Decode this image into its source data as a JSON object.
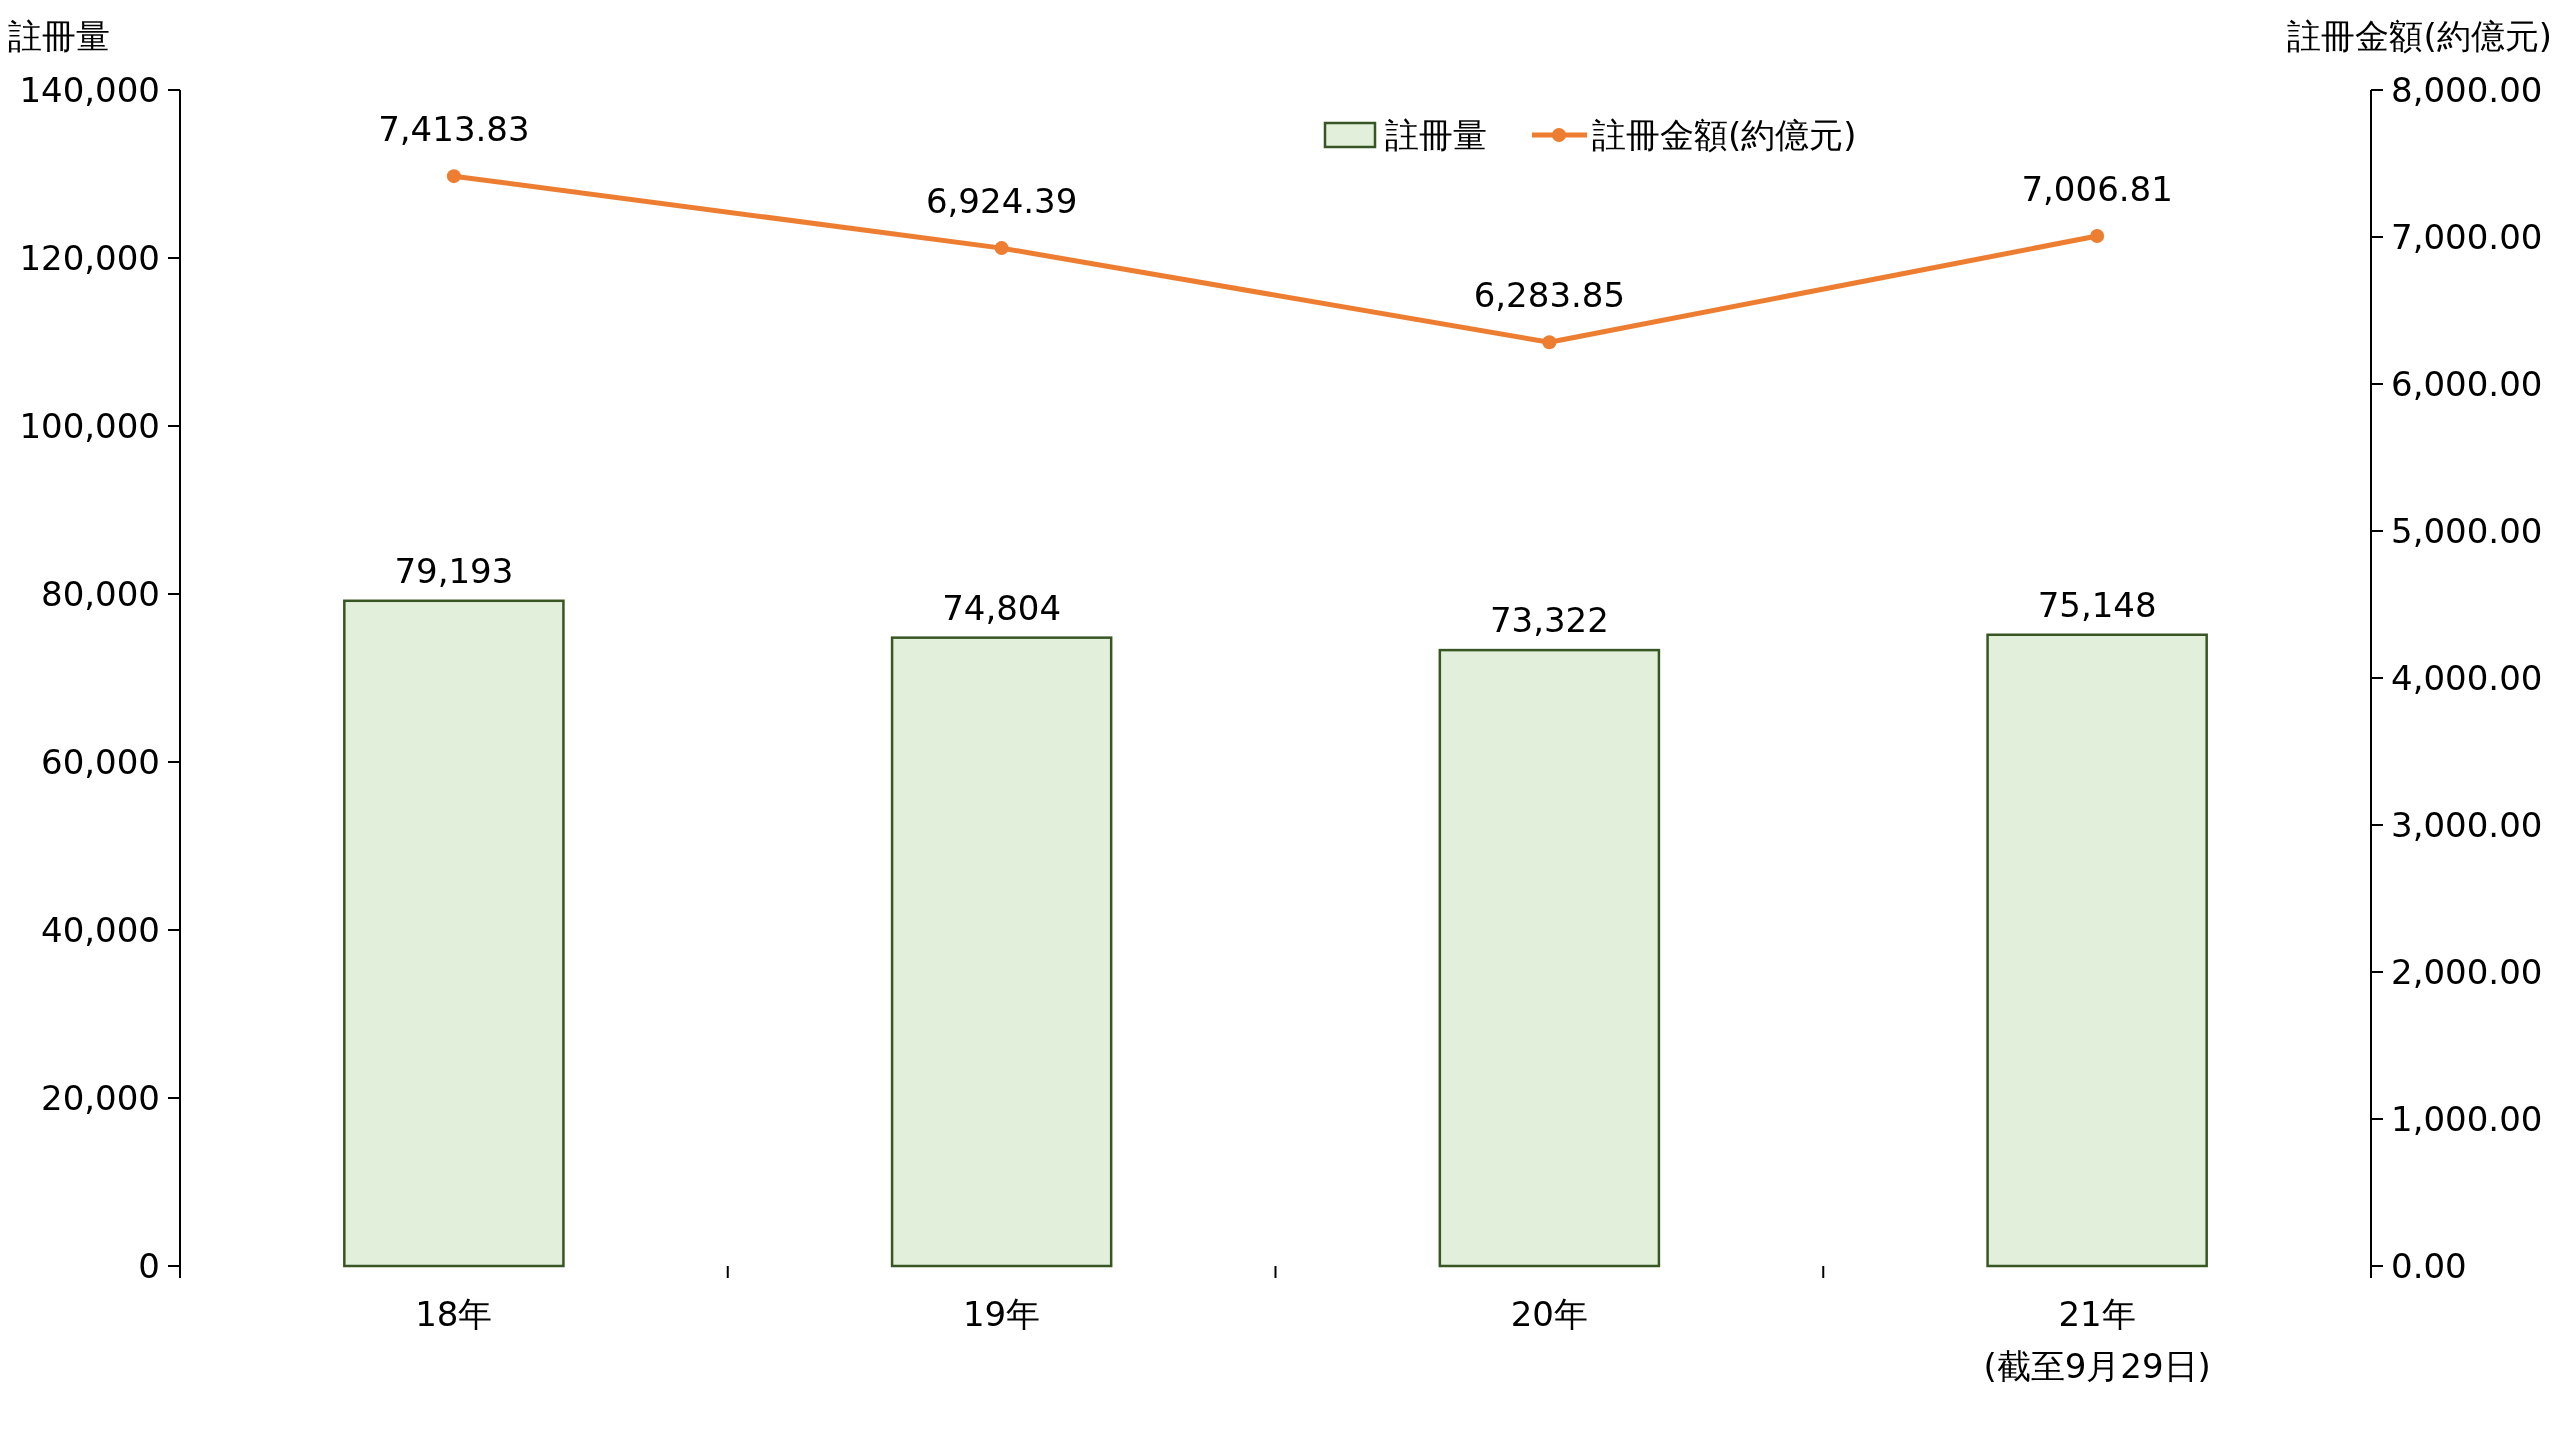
{
  "chart_data": {
    "type": "bar",
    "categories": [
      "18年",
      "19年",
      "20年",
      "21年\n(截至9月29日)"
    ],
    "ylabel": "註冊量",
    "y2label": "註冊金額(約億元)",
    "series": [
      {
        "name": "註冊量",
        "color": "#e2efda",
        "values": [
          79193,
          74804,
          73322,
          75148
        ],
        "value_labels": [
          "79,193",
          "74,804",
          "73,322",
          "75,148"
        ]
      },
      {
        "name": "註冊金額(約億元)",
        "type": "line",
        "axis": "y2",
        "color": "#ed7d31",
        "values": [
          7413.83,
          6924.39,
          6283.85,
          7006.81
        ],
        "value_labels": [
          "7,413.83",
          "6,924.39",
          "6,283.85",
          "7,006.81"
        ]
      }
    ],
    "ylim": [
      0,
      140000
    ],
    "yticks": [
      0,
      {
        "value": 20000,
        "label": "20,000"
      },
      {
        "value": 40000,
        "label": "40,000"
      },
      {
        "value": 60000,
        "label": "60,000"
      },
      {
        "value": 80000,
        "label": "80,000"
      },
      {
        "value": 100000,
        "label": "100,000"
      },
      {
        "value": 120000,
        "label": "120,000"
      },
      {
        "value": 140000,
        "label": "140,000"
      }
    ],
    "y2lim": [
      0,
      8000
    ],
    "y2ticks": [
      {
        "value": 0,
        "label": "0.00"
      },
      {
        "value": 1000,
        "label": "1,000.00"
      },
      {
        "value": 2000,
        "label": "2,000.00"
      },
      {
        "value": 3000,
        "label": "3,000.00"
      },
      {
        "value": 4000,
        "label": "4,000.00"
      },
      {
        "value": 5000,
        "label": "5,000.00"
      },
      {
        "value": 6000,
        "label": "6,000.00"
      },
      {
        "value": 7000,
        "label": "7,000.00"
      },
      {
        "value": 8000,
        "label": "8,000.00"
      }
    ],
    "legend": "top",
    "marker": "circle",
    "line_style": "solid"
  }
}
